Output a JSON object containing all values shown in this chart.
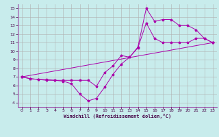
{
  "xlabel": "Windchill (Refroidissement éolien,°C)",
  "background_color": "#c8ecec",
  "line_color": "#aa00aa",
  "xlim": [
    -0.5,
    23.5
  ],
  "ylim": [
    3.5,
    15.5
  ],
  "xticks": [
    0,
    1,
    2,
    3,
    4,
    5,
    6,
    7,
    8,
    9,
    10,
    11,
    12,
    13,
    14,
    15,
    16,
    17,
    18,
    19,
    20,
    21,
    22,
    23
  ],
  "yticks": [
    4,
    5,
    6,
    7,
    8,
    9,
    10,
    11,
    12,
    13,
    14,
    15
  ],
  "grid_color": "#b0b0b0",
  "line1_x": [
    0,
    1,
    2,
    3,
    4,
    5,
    6,
    7,
    8,
    9,
    10,
    11,
    12,
    13,
    14,
    15,
    16,
    17,
    18,
    19,
    20,
    21,
    22,
    23
  ],
  "line1_y": [
    7.0,
    6.8,
    6.7,
    6.6,
    6.6,
    6.5,
    6.2,
    5.0,
    4.2,
    4.5,
    5.8,
    7.3,
    8.5,
    9.3,
    10.5,
    15.0,
    13.5,
    13.7,
    13.7,
    13.0,
    13.0,
    12.5,
    11.5,
    11.0
  ],
  "line2_x": [
    0,
    1,
    2,
    3,
    4,
    5,
    6,
    7,
    8,
    9,
    10,
    11,
    12,
    13,
    14,
    15,
    16,
    17,
    18,
    19,
    20,
    21,
    22,
    23
  ],
  "line2_y": [
    7.0,
    6.8,
    6.7,
    6.7,
    6.6,
    6.6,
    6.6,
    6.6,
    6.6,
    5.9,
    7.5,
    8.3,
    9.5,
    9.3,
    10.4,
    13.3,
    11.5,
    11.0,
    11.0,
    11.0,
    11.0,
    11.5,
    11.5,
    11.0
  ],
  "line3_x": [
    0,
    23
  ],
  "line3_y": [
    7.0,
    11.0
  ]
}
